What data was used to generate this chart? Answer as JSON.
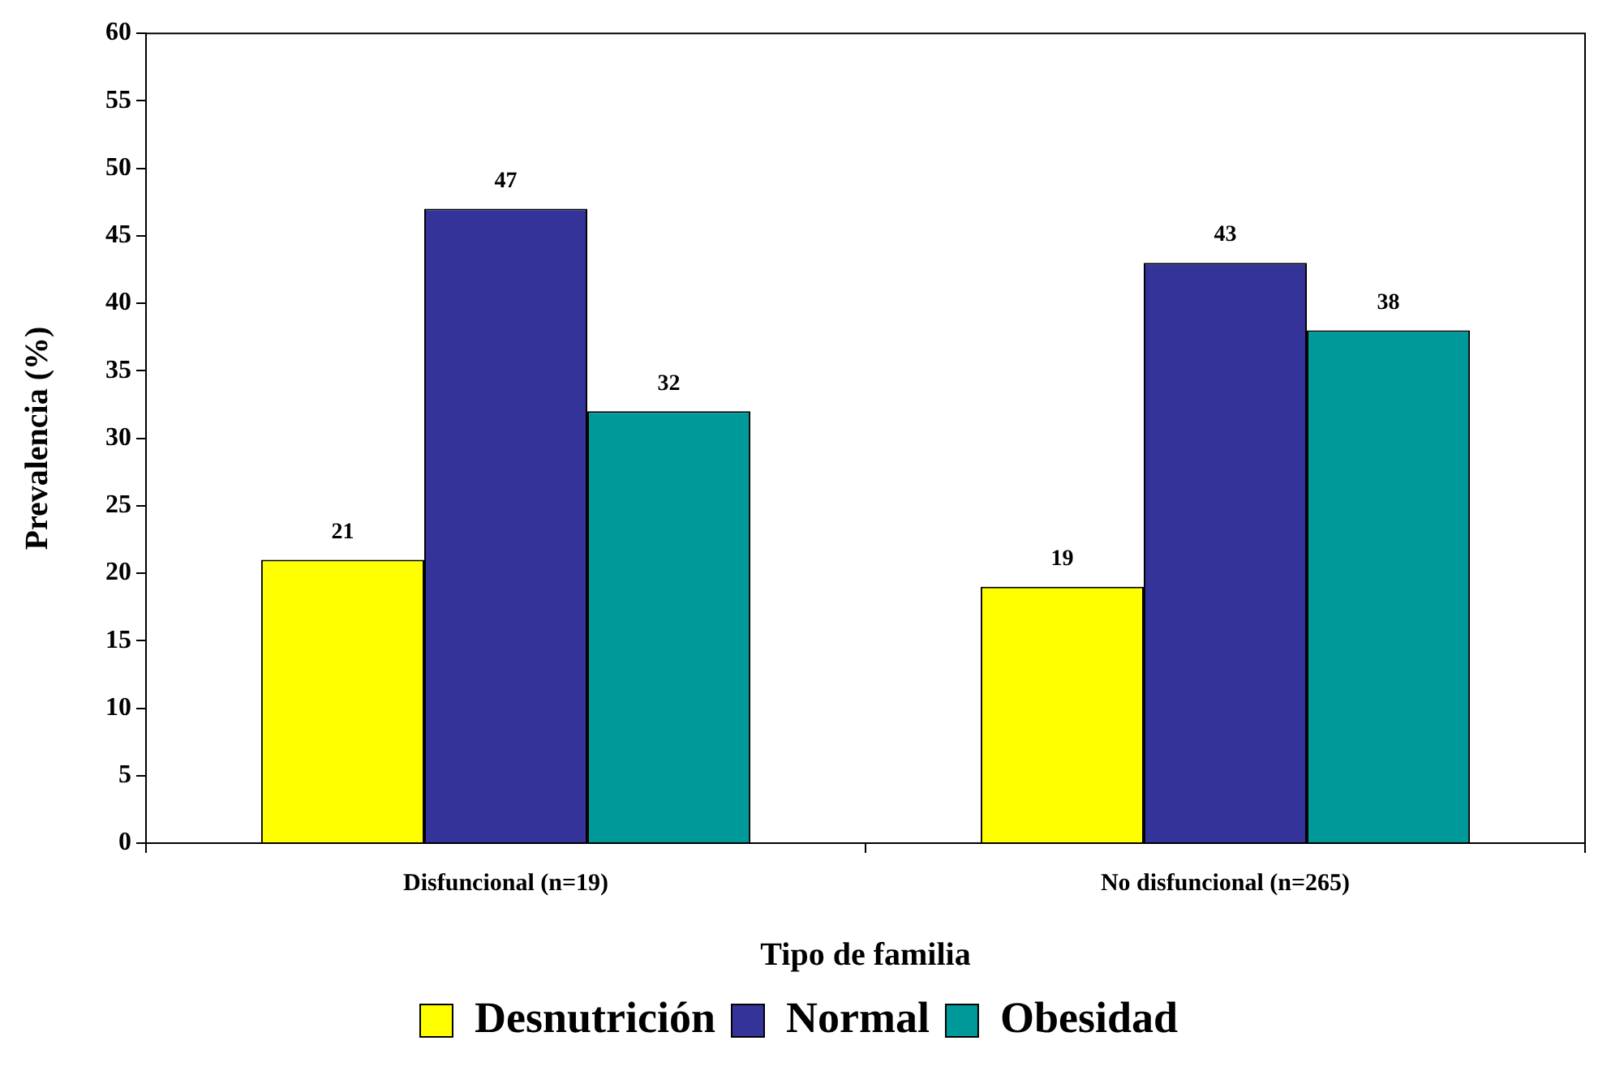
{
  "chart_data": {
    "type": "bar",
    "xlabel": "Tipo de familia",
    "ylabel": "Prevalencia (%)",
    "categories": [
      "Disfuncional (n=19)",
      "No disfuncional (n=265)"
    ],
    "series": [
      {
        "name": "Desnutrición",
        "color": "#ffff00",
        "values": [
          21,
          19
        ]
      },
      {
        "name": "Normal",
        "color": "#333399",
        "values": [
          47,
          43
        ]
      },
      {
        "name": "Obesidad",
        "color": "#009999",
        "values": [
          32,
          38
        ]
      }
    ],
    "ylim": [
      0,
      60
    ],
    "yticks": [
      0,
      5,
      10,
      15,
      20,
      25,
      30,
      35,
      40,
      45,
      50,
      55,
      60
    ],
    "grid": false,
    "legend": "bottom",
    "data_labels": true
  }
}
